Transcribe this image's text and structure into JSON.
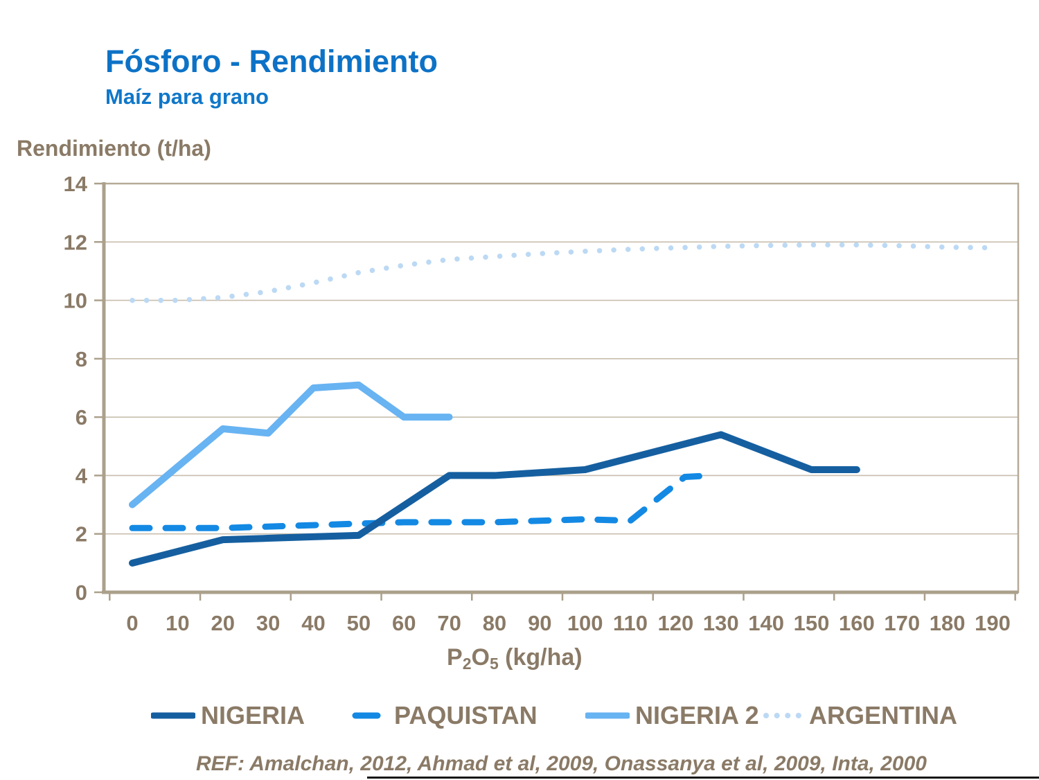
{
  "slide": {
    "title": "Fósforo - Rendimiento",
    "subtitle": "Maíz para grano",
    "footer": "REF: Amalchan, 2012, Ahmad et al, 2009, Onassanya et al, 2009, Inta, 2000"
  },
  "xaxis_title": {
    "p": "P",
    "sub2": "2",
    "o": "O",
    "sub5": "5",
    "rest": " (kg/ha)"
  },
  "colors": {
    "title_blue": "#0D72C6",
    "axis_text": "#8A7A66",
    "gridline": "#C8BEAD",
    "border": "#B6AA97",
    "axis_line": "#ABA08B",
    "nigeria": "#155FA0",
    "paquistan": "#1389E4",
    "nigeria2": "#68B3F2",
    "argentina": "#BCD9F4",
    "footer_line": "#141414"
  },
  "chart_data": {
    "type": "line",
    "title": "Fósforo - Rendimiento",
    "subtitle": "Maíz para grano",
    "xlabel": "P2O5 (kg/ha)",
    "ylabel": "Rendimiento (t/ha)",
    "xlim": [
      0,
      190
    ],
    "ylim": [
      0,
      14
    ],
    "x_ticks": [
      0,
      10,
      20,
      30,
      40,
      50,
      60,
      70,
      80,
      90,
      100,
      110,
      120,
      130,
      140,
      150,
      160,
      170,
      180,
      190
    ],
    "y_ticks": [
      0,
      2,
      4,
      6,
      8,
      10,
      12,
      14
    ],
    "grid": "horizontal",
    "legend_position": "bottom",
    "series": [
      {
        "name": "NIGERIA",
        "style": "solid",
        "color": "#155FA0",
        "width": 10,
        "points": [
          [
            0,
            1.0
          ],
          [
            20,
            1.8
          ],
          [
            30,
            1.85
          ],
          [
            40,
            1.9
          ],
          [
            50,
            1.95
          ],
          [
            70,
            4.0
          ],
          [
            80,
            4.0
          ],
          [
            100,
            4.2
          ],
          [
            130,
            5.4
          ],
          [
            150,
            4.2
          ],
          [
            160,
            4.2
          ]
        ]
      },
      {
        "name": "PAQUISTAN",
        "style": "dashed",
        "color": "#1389E4",
        "width": 9,
        "points": [
          [
            0,
            2.2
          ],
          [
            20,
            2.2
          ],
          [
            40,
            2.3
          ],
          [
            60,
            2.4
          ],
          [
            80,
            2.4
          ],
          [
            100,
            2.5
          ],
          [
            110,
            2.45
          ],
          [
            122,
            3.95
          ],
          [
            128,
            4.0
          ]
        ]
      },
      {
        "name": "NIGERIA 2",
        "style": "solid",
        "color": "#68B3F2",
        "width": 10,
        "points": [
          [
            0,
            3.0
          ],
          [
            20,
            5.6
          ],
          [
            30,
            5.45
          ],
          [
            40,
            7.0
          ],
          [
            50,
            7.1
          ],
          [
            60,
            6.0
          ],
          [
            70,
            6.0
          ]
        ]
      },
      {
        "name": "ARGENTINA",
        "style": "dotted",
        "color": "#BCD9F4",
        "width": 7.5,
        "points": [
          [
            0,
            10.0
          ],
          [
            10,
            10.0
          ],
          [
            20,
            10.1
          ],
          [
            30,
            10.3
          ],
          [
            40,
            10.6
          ],
          [
            50,
            10.95
          ],
          [
            60,
            11.2
          ],
          [
            70,
            11.4
          ],
          [
            80,
            11.5
          ],
          [
            90,
            11.6
          ],
          [
            100,
            11.68
          ],
          [
            110,
            11.75
          ],
          [
            120,
            11.8
          ],
          [
            130,
            11.85
          ],
          [
            140,
            11.88
          ],
          [
            150,
            11.9
          ],
          [
            160,
            11.9
          ],
          [
            170,
            11.87
          ],
          [
            180,
            11.82
          ],
          [
            190,
            11.8
          ]
        ]
      }
    ]
  }
}
